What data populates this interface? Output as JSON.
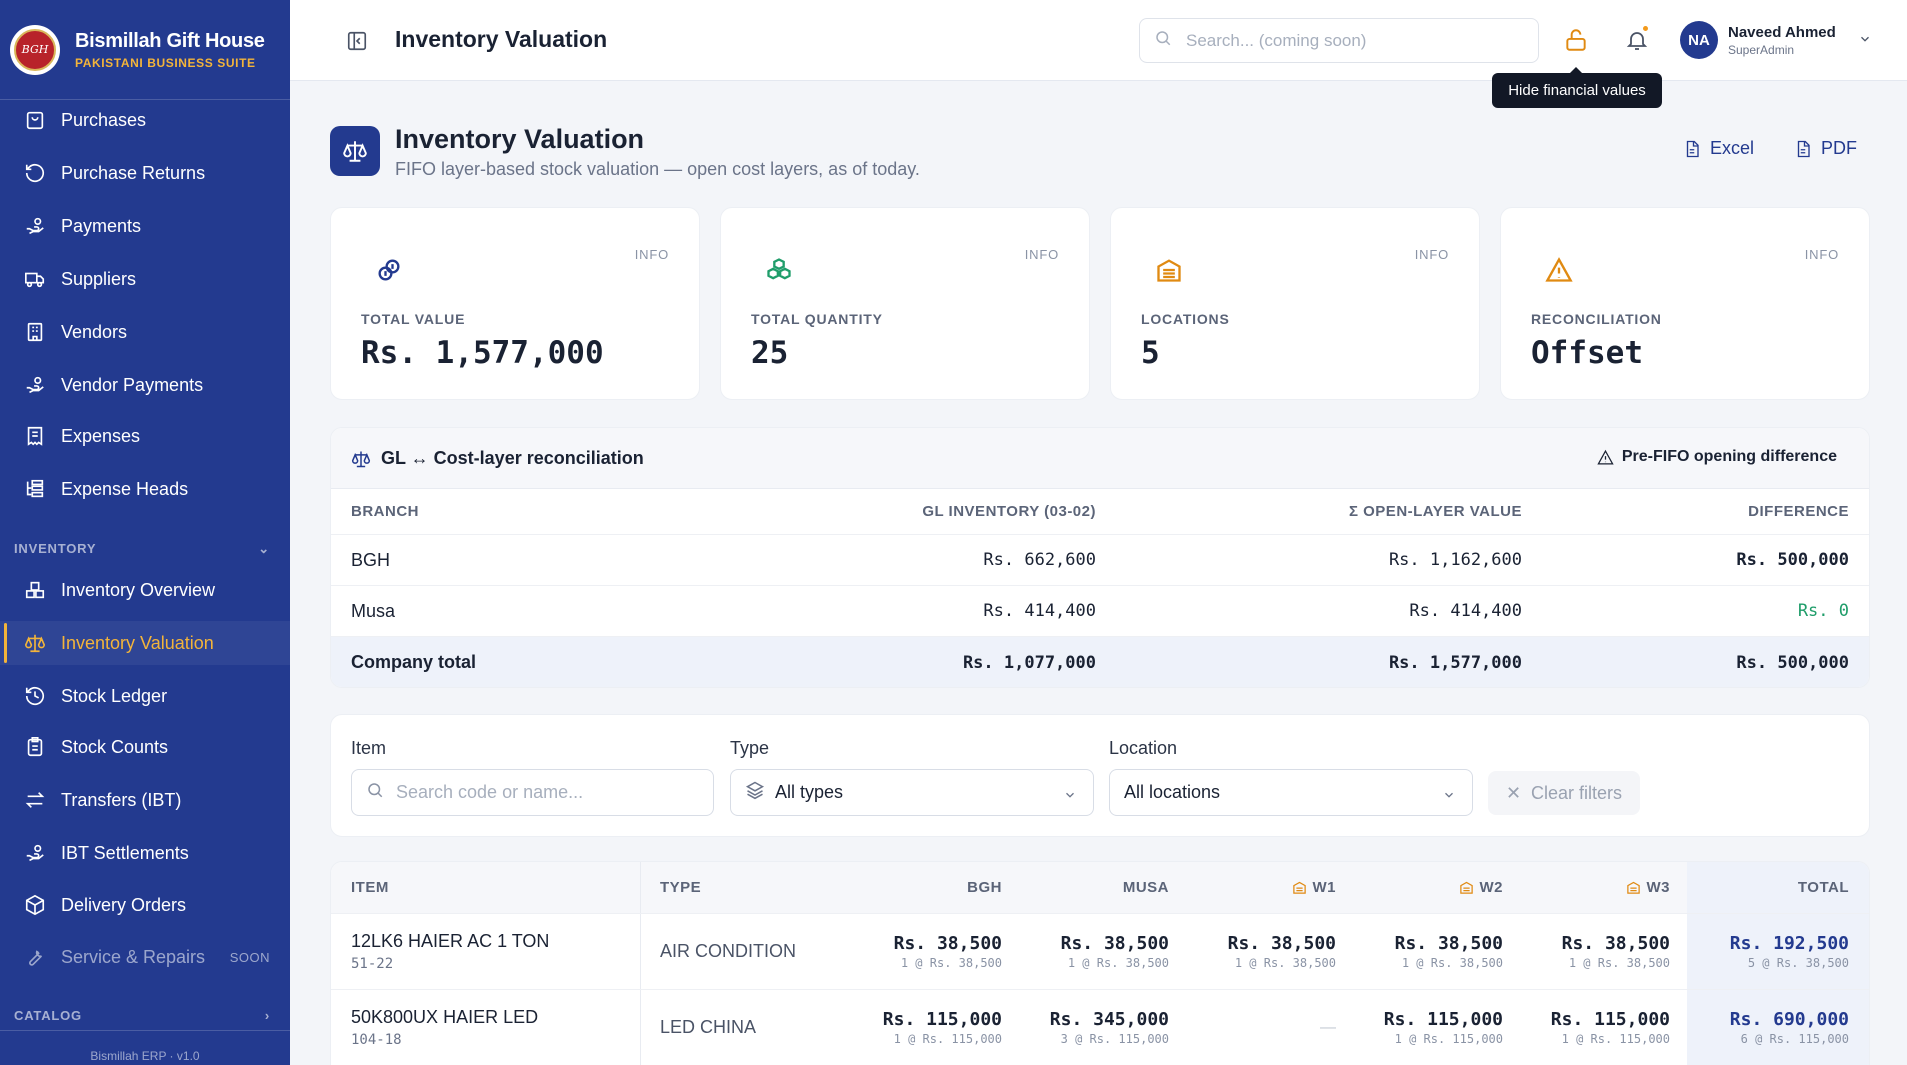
{
  "brand": {
    "name": "Bismillah Gift House",
    "subtitle": "PAKISTANI BUSINESS SUITE",
    "logo_text": "BGH"
  },
  "sidebar": {
    "items_top": [
      {
        "label": "Purchases",
        "icon": "shopping-bag-icon"
      },
      {
        "label": "Purchase Returns",
        "icon": "rotate-ccw-icon"
      },
      {
        "label": "Payments",
        "icon": "hand-coins-icon"
      },
      {
        "label": "Suppliers",
        "icon": "truck-icon"
      },
      {
        "label": "Vendors",
        "icon": "building-icon"
      },
      {
        "label": "Vendor Payments",
        "icon": "hand-coins-icon"
      },
      {
        "label": "Expenses",
        "icon": "receipt-icon"
      },
      {
        "label": "Expense Heads",
        "icon": "list-tree-icon"
      }
    ],
    "section_inventory": "INVENTORY",
    "items_inventory": [
      {
        "label": "Inventory Overview",
        "icon": "boxes-icon"
      },
      {
        "label": "Inventory Valuation",
        "icon": "scale-icon",
        "active": true
      },
      {
        "label": "Stock Ledger",
        "icon": "history-icon"
      },
      {
        "label": "Stock Counts",
        "icon": "clipboard-list-icon"
      },
      {
        "label": "Transfers (IBT)",
        "icon": "arrow-left-right-icon"
      },
      {
        "label": "IBT Settlements",
        "icon": "hand-coins-icon"
      },
      {
        "label": "Delivery Orders",
        "icon": "package-icon"
      },
      {
        "label": "Service & Repairs",
        "icon": "wrench-icon",
        "badge": "SOON"
      }
    ],
    "section_catalog": "CATALOG",
    "footer": "Bismillah ERP · v1.0"
  },
  "topbar": {
    "title": "Inventory Valuation",
    "search_placeholder": "Search... (coming soon)",
    "user_initials": "NA",
    "user_name": "Naveed Ahmed",
    "user_role": "SuperAdmin",
    "tooltip": "Hide financial values"
  },
  "page": {
    "title": "Inventory Valuation",
    "subtitle": "FIFO layer-based stock valuation — open cost layers, as of today.",
    "export_excel": "Excel",
    "export_pdf": "PDF"
  },
  "kpis": [
    {
      "label": "TOTAL VALUE",
      "value": "Rs. 1,577,000",
      "info": "INFO",
      "icon": "coins-icon",
      "color": "#233a8f"
    },
    {
      "label": "TOTAL QUANTITY",
      "value": "25",
      "info": "INFO",
      "icon": "boxes-icon",
      "color": "#1f9d6a"
    },
    {
      "label": "LOCATIONS",
      "value": "5",
      "info": "INFO",
      "icon": "warehouse-icon",
      "color": "#e08a12"
    },
    {
      "label": "RECONCILIATION",
      "value": "Offset",
      "info": "INFO",
      "icon": "alert-triangle-icon",
      "color": "#e08a12"
    }
  ],
  "reconciliation": {
    "title": "GL ↔ Cost-layer reconciliation",
    "note": "Pre-FIFO opening difference",
    "columns": [
      "BRANCH",
      "GL INVENTORY (03-02)",
      "Σ OPEN-LAYER VALUE",
      "DIFFERENCE"
    ],
    "rows": [
      {
        "branch": "BGH",
        "gl": "Rs. 662,600",
        "layer": "Rs. 1,162,600",
        "diff": "Rs. 500,000"
      },
      {
        "branch": "Musa",
        "gl": "Rs. 414,400",
        "layer": "Rs. 414,400",
        "diff": "Rs. 0"
      }
    ],
    "total": {
      "branch": "Company total",
      "gl": "Rs. 1,077,000",
      "layer": "Rs. 1,577,000",
      "diff": "Rs. 500,000"
    }
  },
  "filters": {
    "item_label": "Item",
    "item_placeholder": "Search code or name...",
    "type_label": "Type",
    "type_value": "All types",
    "location_label": "Location",
    "location_value": "All locations",
    "clear": "Clear filters"
  },
  "items_table": {
    "columns": [
      "ITEM",
      "TYPE",
      "BGH",
      "MUSA",
      "W1",
      "W2",
      "W3",
      "TOTAL"
    ],
    "rows": [
      {
        "name": "12LK6 HAIER AC 1 TON",
        "code": "51-22",
        "type": "AIR CONDITION",
        "cells": [
          {
            "value": "Rs. 38,500",
            "sub": "1 @ Rs. 38,500"
          },
          {
            "value": "Rs. 38,500",
            "sub": "1 @ Rs. 38,500"
          },
          {
            "value": "Rs. 38,500",
            "sub": "1 @ Rs. 38,500"
          },
          {
            "value": "Rs. 38,500",
            "sub": "1 @ Rs. 38,500"
          },
          {
            "value": "Rs. 38,500",
            "sub": "1 @ Rs. 38,500"
          }
        ],
        "total": {
          "value": "Rs. 192,500",
          "sub": "5 @ Rs. 38,500"
        }
      },
      {
        "name": "50K800UX HAIER LED",
        "code": "104-18",
        "type": "LED CHINA",
        "cells": [
          {
            "value": "Rs. 115,000",
            "sub": "1 @ Rs. 115,000"
          },
          {
            "value": "Rs. 345,000",
            "sub": "3 @ Rs. 115,000"
          },
          {
            "value": "—",
            "sub": ""
          },
          {
            "value": "Rs. 115,000",
            "sub": "1 @ Rs. 115,000"
          },
          {
            "value": "Rs. 115,000",
            "sub": "1 @ Rs. 115,000"
          }
        ],
        "total": {
          "value": "Rs. 690,000",
          "sub": "6 @ Rs. 115,000"
        }
      }
    ]
  }
}
